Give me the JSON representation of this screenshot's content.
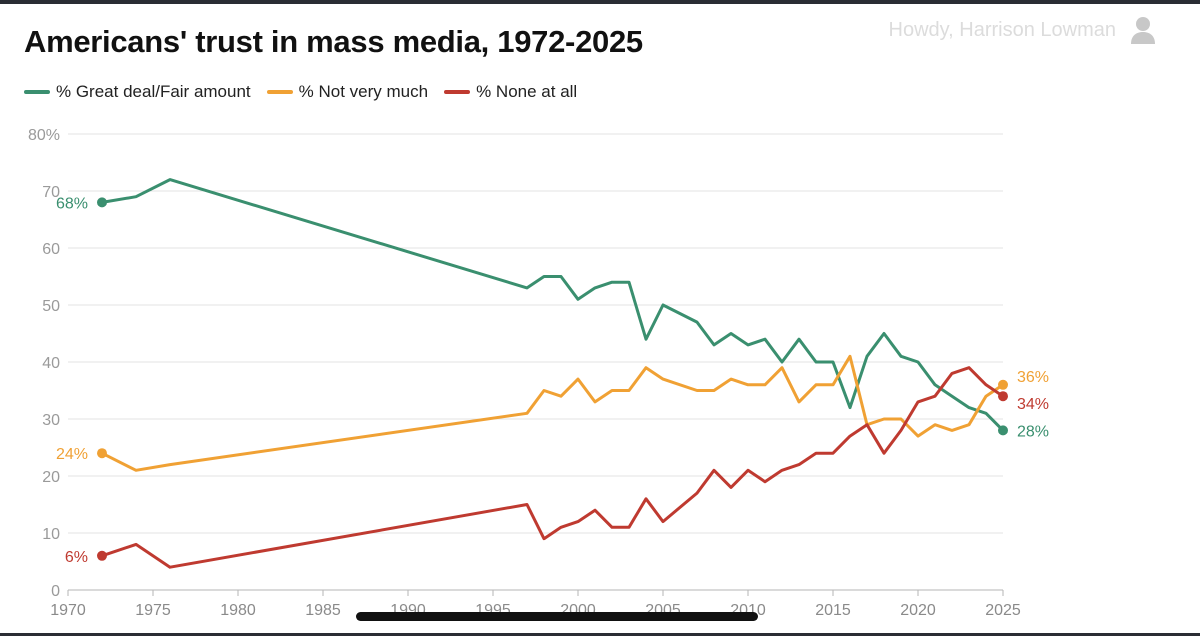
{
  "header": {
    "title": "Americans' trust in mass media, 1972-2025",
    "user_text": "Howdy, Harrison Lowman",
    "user_icon": "user-icon"
  },
  "colors": {
    "great_deal": "#3a8f6f",
    "not_very_much": "#f0a134",
    "none_at_all": "#bf3a30",
    "grid": "#e3e3e3",
    "axis_text": "#9a9a9a"
  },
  "chart_data": {
    "type": "line",
    "title": "Americans' trust in mass media, 1972-2025",
    "xlabel": "",
    "ylabel": "",
    "xlim": [
      1970,
      2025
    ],
    "ylim": [
      0,
      80
    ],
    "x_ticks": [
      "1970",
      "1975",
      "1980",
      "1985",
      "1990",
      "1995",
      "2000",
      "2005",
      "2010",
      "2015",
      "2020",
      "2025"
    ],
    "y_ticks": [
      "0",
      "10",
      "20",
      "30",
      "40",
      "50",
      "60",
      "70",
      "80%"
    ],
    "grid": true,
    "legend_position": "top-left",
    "series": [
      {
        "name": "% Great deal/Fair amount",
        "color": "#3a8f6f",
        "start_label": "68%",
        "end_label": "28%",
        "points": [
          [
            1972,
            68
          ],
          [
            1974,
            69
          ],
          [
            1976,
            72
          ],
          [
            1997,
            53
          ],
          [
            1998,
            55
          ],
          [
            1999,
            55
          ],
          [
            2000,
            51
          ],
          [
            2001,
            53
          ],
          [
            2002,
            54
          ],
          [
            2003,
            54
          ],
          [
            2004,
            44
          ],
          [
            2005,
            50
          ],
          [
            2007,
            47
          ],
          [
            2008,
            43
          ],
          [
            2009,
            45
          ],
          [
            2010,
            43
          ],
          [
            2011,
            44
          ],
          [
            2012,
            40
          ],
          [
            2013,
            44
          ],
          [
            2014,
            40
          ],
          [
            2015,
            40
          ],
          [
            2016,
            32
          ],
          [
            2017,
            41
          ],
          [
            2018,
            45
          ],
          [
            2019,
            41
          ],
          [
            2020,
            40
          ],
          [
            2021,
            36
          ],
          [
            2022,
            34
          ],
          [
            2023,
            32
          ],
          [
            2024,
            31
          ],
          [
            2025,
            28
          ]
        ]
      },
      {
        "name": "% Not very much",
        "color": "#f0a134",
        "start_label": "24%",
        "end_label": "36%",
        "points": [
          [
            1972,
            24
          ],
          [
            1974,
            21
          ],
          [
            1976,
            22
          ],
          [
            1997,
            31
          ],
          [
            1998,
            35
          ],
          [
            1999,
            34
          ],
          [
            2000,
            37
          ],
          [
            2001,
            33
          ],
          [
            2002,
            35
          ],
          [
            2003,
            35
          ],
          [
            2004,
            39
          ],
          [
            2005,
            37
          ],
          [
            2007,
            35
          ],
          [
            2008,
            35
          ],
          [
            2009,
            37
          ],
          [
            2010,
            36
          ],
          [
            2011,
            36
          ],
          [
            2012,
            39
          ],
          [
            2013,
            33
          ],
          [
            2014,
            36
          ],
          [
            2015,
            36
          ],
          [
            2016,
            41
          ],
          [
            2017,
            29
          ],
          [
            2018,
            30
          ],
          [
            2019,
            30
          ],
          [
            2020,
            27
          ],
          [
            2021,
            29
          ],
          [
            2022,
            28
          ],
          [
            2023,
            29
          ],
          [
            2024,
            34
          ],
          [
            2025,
            36
          ]
        ]
      },
      {
        "name": "% None at all",
        "color": "#bf3a30",
        "start_label": "6%",
        "end_label": "34%",
        "points": [
          [
            1972,
            6
          ],
          [
            1974,
            8
          ],
          [
            1976,
            4
          ],
          [
            1997,
            15
          ],
          [
            1998,
            9
          ],
          [
            1999,
            11
          ],
          [
            2000,
            12
          ],
          [
            2001,
            14
          ],
          [
            2002,
            11
          ],
          [
            2003,
            11
          ],
          [
            2004,
            16
          ],
          [
            2005,
            12
          ],
          [
            2007,
            17
          ],
          [
            2008,
            21
          ],
          [
            2009,
            18
          ],
          [
            2010,
            21
          ],
          [
            2011,
            19
          ],
          [
            2012,
            21
          ],
          [
            2013,
            22
          ],
          [
            2014,
            24
          ],
          [
            2015,
            24
          ],
          [
            2016,
            27
          ],
          [
            2017,
            29
          ],
          [
            2018,
            24
          ],
          [
            2019,
            28
          ],
          [
            2020,
            33
          ],
          [
            2021,
            34
          ],
          [
            2022,
            38
          ],
          [
            2023,
            39
          ],
          [
            2024,
            36
          ],
          [
            2025,
            34
          ]
        ]
      }
    ]
  }
}
